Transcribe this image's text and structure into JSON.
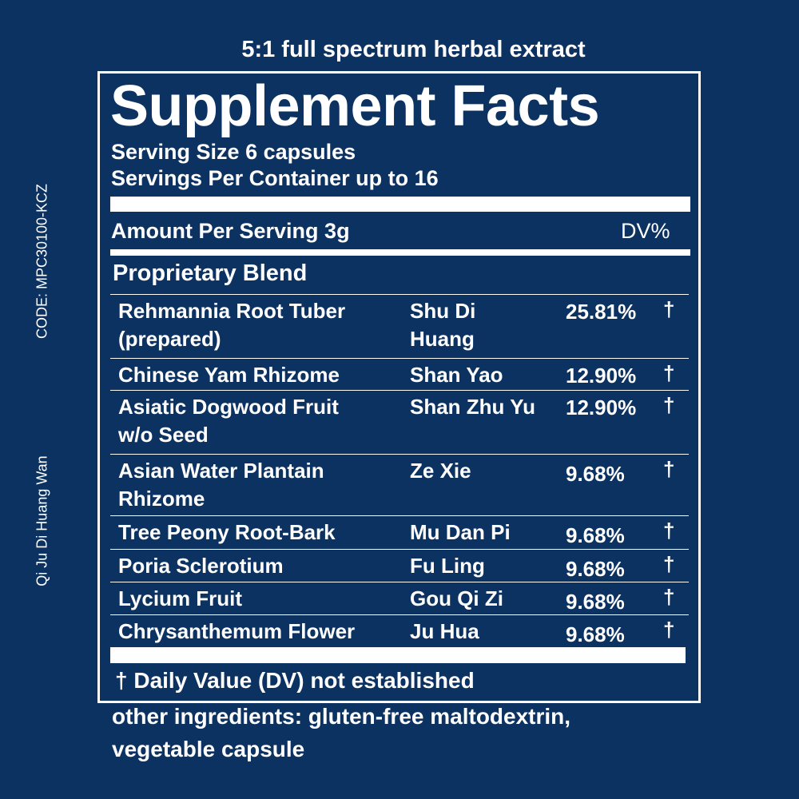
{
  "top_label": "5:1 full spectrum herbal extract",
  "title": "Supplement Facts",
  "serving_size": "Serving Size 6 capsules",
  "servings_per_container": "Servings Per Container up to 16",
  "amount_header": "Amount Per Serving 3g",
  "dv_header": "DV%",
  "blend_name": "Proprietary Blend",
  "rows": [
    {
      "name": [
        "Rehmannia Root Tuber",
        "(prepared)"
      ],
      "pinyin": [
        "Shu Di",
        "Huang"
      ],
      "percent": "25.81%",
      "mark": "†"
    },
    {
      "name": [
        "Chinese Yam Rhizome"
      ],
      "pinyin": [
        "Shan Yao"
      ],
      "percent": "12.90%",
      "mark": "†"
    },
    {
      "name": [
        "Asiatic Dogwood Fruit",
        "w/o Seed"
      ],
      "pinyin": [
        "Shan Zhu Yu"
      ],
      "percent": "12.90%",
      "mark": "†"
    },
    {
      "name": [
        "Asian Water Plantain",
        "Rhizome"
      ],
      "pinyin": [
        "Ze Xie"
      ],
      "percent": "9.68%",
      "mark": "†"
    },
    {
      "name": [
        "Tree Peony Root-Bark"
      ],
      "pinyin": [
        "Mu Dan Pi"
      ],
      "percent": "9.68%",
      "mark": "†"
    },
    {
      "name": [
        "Poria Sclerotium"
      ],
      "pinyin": [
        "Fu Ling"
      ],
      "percent": "9.68%",
      "mark": "†"
    },
    {
      "name": [
        "Lycium Fruit"
      ],
      "pinyin": [
        "Gou Qi Zi"
      ],
      "percent": "9.68%",
      "mark": "†"
    },
    {
      "name": [
        "Chrysanthemum Flower"
      ],
      "pinyin": [
        "Ju Hua"
      ],
      "percent": "9.68%",
      "mark": "†"
    }
  ],
  "footnote": "† Daily Value (DV) not established",
  "other_ingredients": [
    "other ingredients: gluten-free maltodextrin,",
    "vegetable capsule"
  ],
  "side_code": "CODE: MPC30100-KCZ",
  "side_name": "Qi Ju Di Huang Wan"
}
